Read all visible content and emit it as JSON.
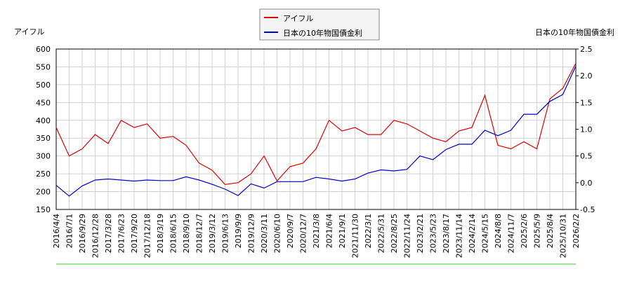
{
  "chart_data": {
    "type": "line",
    "y_label": "アイフル",
    "y2_label": "日本の10年物国債金利",
    "categories": [
      "2016/4/4",
      "2016/7/1",
      "2016/9/29",
      "2016/12/28",
      "2017/3/28",
      "2017/6/23",
      "2017/9/20",
      "2017/12/18",
      "2018/3/19",
      "2018/6/15",
      "2018/9/10",
      "2018/12/7",
      "2019/3/12",
      "2019/6/13",
      "2019/9/9",
      "2019/12/9",
      "2020/3/11",
      "2020/6/10",
      "2020/9/7",
      "2020/12/7",
      "2021/3/8",
      "2021/6/4",
      "2021/9/1",
      "2021/11/30",
      "2022/3/1",
      "2022/5/31",
      "2022/8/25",
      "2022/11/24",
      "2023/2/21",
      "2023/5/23",
      "2023/8/17",
      "2023/11/14",
      "2024/2/14",
      "2024/5/15",
      "2024/8/8",
      "2024/11/7",
      "2025/2/6",
      "2025/5/9",
      "2025/8/4",
      "2025/10/31",
      "2026/2/2"
    ],
    "series": [
      {
        "name": "アイフル",
        "color": "#dd0000",
        "axis": "y",
        "values": [
          380,
          300,
          320,
          360,
          335,
          400,
          380,
          390,
          350,
          355,
          330,
          280,
          260,
          220,
          225,
          250,
          300,
          230,
          270,
          280,
          320,
          400,
          370,
          380,
          360,
          360,
          400,
          390,
          370,
          350,
          340,
          370,
          380,
          470,
          330,
          320,
          340,
          320,
          460,
          490,
          560
        ]
      },
      {
        "name": "日本の10年物国債金利",
        "color": "#0000cc",
        "axis": "y2",
        "values": [
          -0.05,
          -0.25,
          -0.06,
          0.05,
          0.07,
          0.05,
          0.03,
          0.05,
          0.04,
          0.04,
          0.11,
          0.05,
          -0.03,
          -0.12,
          -0.24,
          -0.02,
          -0.1,
          0.02,
          0.02,
          0.02,
          0.1,
          0.07,
          0.03,
          0.07,
          0.18,
          0.24,
          0.22,
          0.25,
          0.5,
          0.43,
          0.62,
          0.72,
          0.72,
          0.98,
          0.88,
          0.98,
          1.28,
          1.28,
          1.52,
          1.65,
          2.18
        ]
      }
    ],
    "ylim": [
      150,
      600
    ],
    "yticks": [
      150,
      200,
      250,
      300,
      350,
      400,
      450,
      500,
      550,
      600
    ],
    "y2lim": [
      -0.5,
      2.5
    ],
    "y2ticks": [
      -0.5,
      {
        "value": 0,
        "label": "0.0"
      },
      0.5,
      {
        "value": 1,
        "label": "1.0"
      },
      1.5,
      {
        "value": 2,
        "label": "2.0"
      },
      2.5
    ],
    "grid": true,
    "legend": "top"
  }
}
